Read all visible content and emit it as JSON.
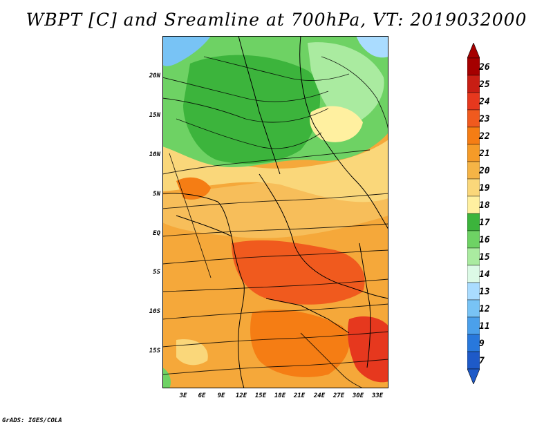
{
  "title": "WBPT [C] and Sreamline at 700hPa, VT: 2019032000",
  "footer": "GrADS: IGES/COLA",
  "map": {
    "lat_labels": [
      "20N",
      "15N",
      "10N",
      "5N",
      "EQ",
      "5S",
      "10S",
      "15S"
    ],
    "lon_labels": [
      "3E",
      "6E",
      "9E",
      "12E",
      "15E",
      "18E",
      "21E",
      "24E",
      "27E",
      "30E",
      "33E"
    ]
  },
  "colorbar": {
    "labels": [
      "26",
      "25",
      "24",
      "23",
      "22",
      "21",
      "20",
      "19",
      "18",
      "17",
      "16",
      "15",
      "14",
      "13",
      "12",
      "11",
      "9",
      "7"
    ],
    "colors": [
      "#a50000",
      "#c81e14",
      "#e6381e",
      "#f05a1e",
      "#f57d14",
      "#f59b28",
      "#f5b446",
      "#fad77a",
      "#fff0a0",
      "#3cb43c",
      "#6ed264",
      "#aaeba0",
      "#dcfae6",
      "#aadcff",
      "#78c3f5",
      "#4ba0eb",
      "#2878dc",
      "#1e5ac8"
    ]
  }
}
